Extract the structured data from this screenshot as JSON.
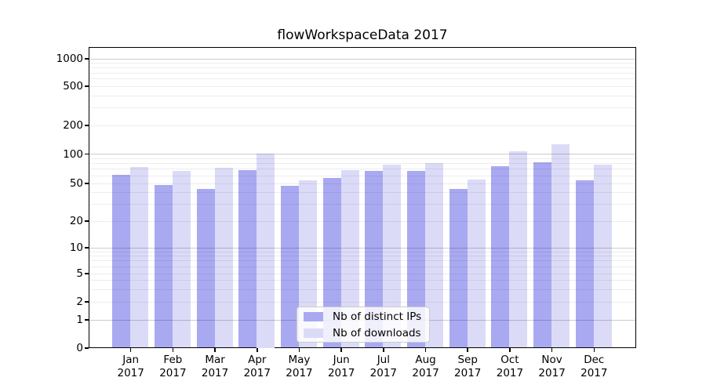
{
  "title": "flowWorkspaceData 2017",
  "chart_data": {
    "type": "bar",
    "title": "flowWorkspaceData 2017",
    "categories": [
      "Jan",
      "Feb",
      "Mar",
      "Apr",
      "May",
      "Jun",
      "Jul",
      "Aug",
      "Sep",
      "Oct",
      "Nov",
      "Dec"
    ],
    "category_year": "2017",
    "series": [
      {
        "name": "Nb of distinct IPs",
        "color": "#a9a9f2",
        "values": [
          61,
          48,
          43,
          68,
          47,
          56,
          67,
          66,
          43,
          74,
          82,
          53
        ]
      },
      {
        "name": "Nb of downloads",
        "color": "#dbdbf8",
        "values": [
          73,
          67,
          72,
          100,
          53,
          68,
          77,
          80,
          54,
          105,
          125,
          77
        ]
      }
    ],
    "xlabel": "",
    "ylabel": "",
    "y_scale": "log-like (1-2-5 tick sequence, 0 baseline)",
    "y_ticks": [
      0,
      1,
      2,
      5,
      10,
      20,
      50,
      100,
      200,
      500,
      1000
    ],
    "ylim": [
      0,
      1300
    ],
    "grid": {
      "on": true,
      "minor_values": [
        2,
        3,
        4,
        5,
        6,
        7,
        8,
        9,
        20,
        30,
        40,
        50,
        60,
        70,
        80,
        90,
        200,
        300,
        400,
        500,
        600,
        700,
        800,
        900
      ],
      "major_values": [
        1,
        10,
        100,
        1000
      ]
    },
    "legend_position": "bottom-center"
  },
  "legend": {
    "items": [
      {
        "label": "Nb of distinct IPs",
        "color": "#a9a9f2"
      },
      {
        "label": "Nb of downloads",
        "color": "#dbdbf8"
      }
    ]
  },
  "colors": {
    "bar_distinct_ips": "#a9a9f2",
    "bar_downloads": "#dbdbf8",
    "axis": "#000000",
    "background": "#ffffff"
  }
}
